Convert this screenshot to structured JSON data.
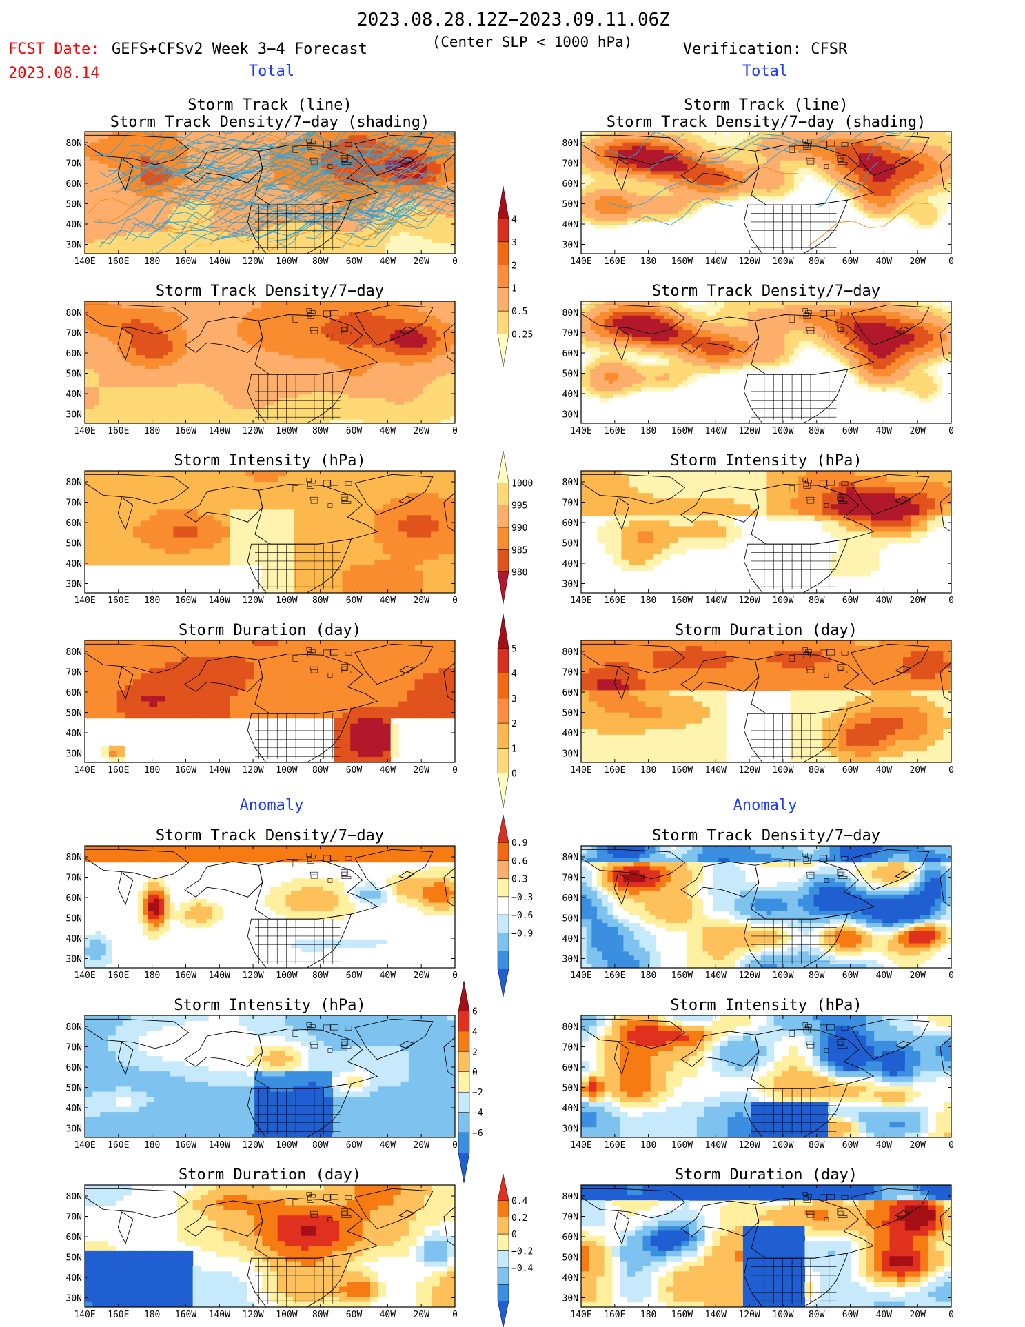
{
  "header": {
    "date_range": "2023.08.28.12Z−2023.09.11.06Z",
    "criterion": "(Center SLP < 1000 hPa)",
    "fcst_label": "FCST Date:",
    "fcst_date": "2023.08.14",
    "model": "GEFS+CFSv2 Week 3−4 Forecast",
    "verification": "Verification: CFSR"
  },
  "sections": {
    "total": "Total",
    "anomaly": "Anomaly"
  },
  "panel_titles": {
    "track1": "Storm Track (line)",
    "track2": "Storm Track Density/7−day (shading)",
    "density": "Storm Track Density/7−day",
    "intensity": "Storm Intensity (hPa)",
    "duration": "Storm Duration (day)"
  },
  "axes": {
    "lon_labels": [
      "140E",
      "160E",
      "180",
      "160W",
      "140W",
      "120W",
      "100W",
      "80W",
      "60W",
      "40W",
      "20W",
      "0"
    ],
    "lat_labels": [
      "80N",
      "70N",
      "60N",
      "50N",
      "40N",
      "30N"
    ]
  },
  "colorbars": {
    "density_total": {
      "labels": [
        "4",
        "3",
        "2",
        "1",
        "0.5",
        "0.25"
      ],
      "colors": [
        "#a50f15",
        "#d7301f",
        "#f16913",
        "#fd8d3c",
        "#fdae6b",
        "#fed976",
        "#ffffbf"
      ]
    },
    "intensity_total": {
      "labels": [
        "1000",
        "995",
        "990",
        "985",
        "980"
      ],
      "colors": [
        "#ffffbf",
        "#fed976",
        "#fdae6b",
        "#f98c2e",
        "#e0531c",
        "#b2182b"
      ]
    },
    "duration_total": {
      "labels": [
        "5",
        "4",
        "3",
        "2",
        "1",
        "0"
      ],
      "colors": [
        "#a50f15",
        "#d7301f",
        "#f16913",
        "#fd8d3c",
        "#fdb84d",
        "#fed976",
        "#ffffbf"
      ]
    },
    "density_anom": {
      "labels": [
        "0.9",
        "0.6",
        "0.3",
        "−0.3",
        "−0.6",
        "−0.9"
      ],
      "colors": [
        "#d7301f",
        "#f16913",
        "#fdae6b",
        "#fff3a8",
        "#ffffff",
        "#c6e9fb",
        "#7ec2f0",
        "#3a8fe0",
        "#1f5fd1"
      ]
    },
    "intensity_anom": {
      "labels": [
        "6",
        "4",
        "2",
        "0",
        "−2",
        "−4",
        "−6"
      ],
      "colors": [
        "#a50f15",
        "#e0301e",
        "#f57b12",
        "#fdc05a",
        "#fff3a8",
        "#c6e9fb",
        "#7ec2f0",
        "#3a8fe0",
        "#1f5fd1"
      ]
    },
    "duration_anom": {
      "labels": [
        "0.4",
        "0.2",
        "0",
        "−0.2",
        "−0.4"
      ],
      "colors": [
        "#e0301e",
        "#f57b12",
        "#fdc05a",
        "#fff3a8",
        "#c6e9fb",
        "#7ec2f0",
        "#3a8fe0",
        "#1f5fd1"
      ]
    }
  },
  "palette": {
    "tot_density": [
      "#ffffff",
      "#fff7c0",
      "#fed976",
      "#fdae6b",
      "#f98c2e",
      "#e0531c",
      "#b2182b"
    ],
    "tot_intensity": [
      "#ffffff",
      "#fff3b0",
      "#fdb84d",
      "#f98c2e",
      "#e0531c",
      "#b2182b"
    ],
    "tot_duration": [
      "#ffffff",
      "#fff3b0",
      "#fdb84d",
      "#f98c2e",
      "#e0531c",
      "#b2182b"
    ],
    "anomaly": [
      "#1f5fd1",
      "#3a8fe0",
      "#7ec2f0",
      "#c6e9fb",
      "#ffffff",
      "#fff0a0",
      "#fdc05a",
      "#f57b12",
      "#e0301e",
      "#a50f15"
    ],
    "track_line": "#29a3e0",
    "track_line2": "#f08a1c",
    "title_red": "#ff0000",
    "section_blue": "#1e3cff"
  }
}
